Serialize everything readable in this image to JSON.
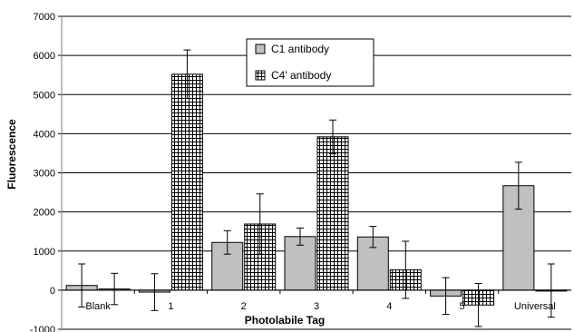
{
  "chart_data": {
    "type": "bar",
    "categories": [
      "Blank",
      "1",
      "2",
      "3",
      "4",
      "5",
      "Universal"
    ],
    "series": [
      {
        "name": "C1 antibody",
        "values": [
          120,
          -50,
          1220,
          1370,
          1360,
          -150,
          2670
        ],
        "errors": [
          550,
          470,
          300,
          220,
          270,
          470,
          600
        ],
        "color": "#c0c0c0",
        "pattern": "solid"
      },
      {
        "name": "C4' antibody",
        "values": [
          30,
          5520,
          1690,
          3920,
          520,
          -380,
          -10
        ],
        "errors": [
          400,
          620,
          770,
          430,
          730,
          550,
          680
        ],
        "color": "#ffffff",
        "pattern": "grid"
      }
    ],
    "xlabel": "Photolabile Tag",
    "ylabel": "Fluorescence",
    "ylim": [
      -1000,
      7000
    ],
    "yticks": [
      -1000,
      0,
      1000,
      2000,
      3000,
      4000,
      5000,
      6000,
      7000
    ],
    "grid": true,
    "legend_position": "top-center"
  }
}
